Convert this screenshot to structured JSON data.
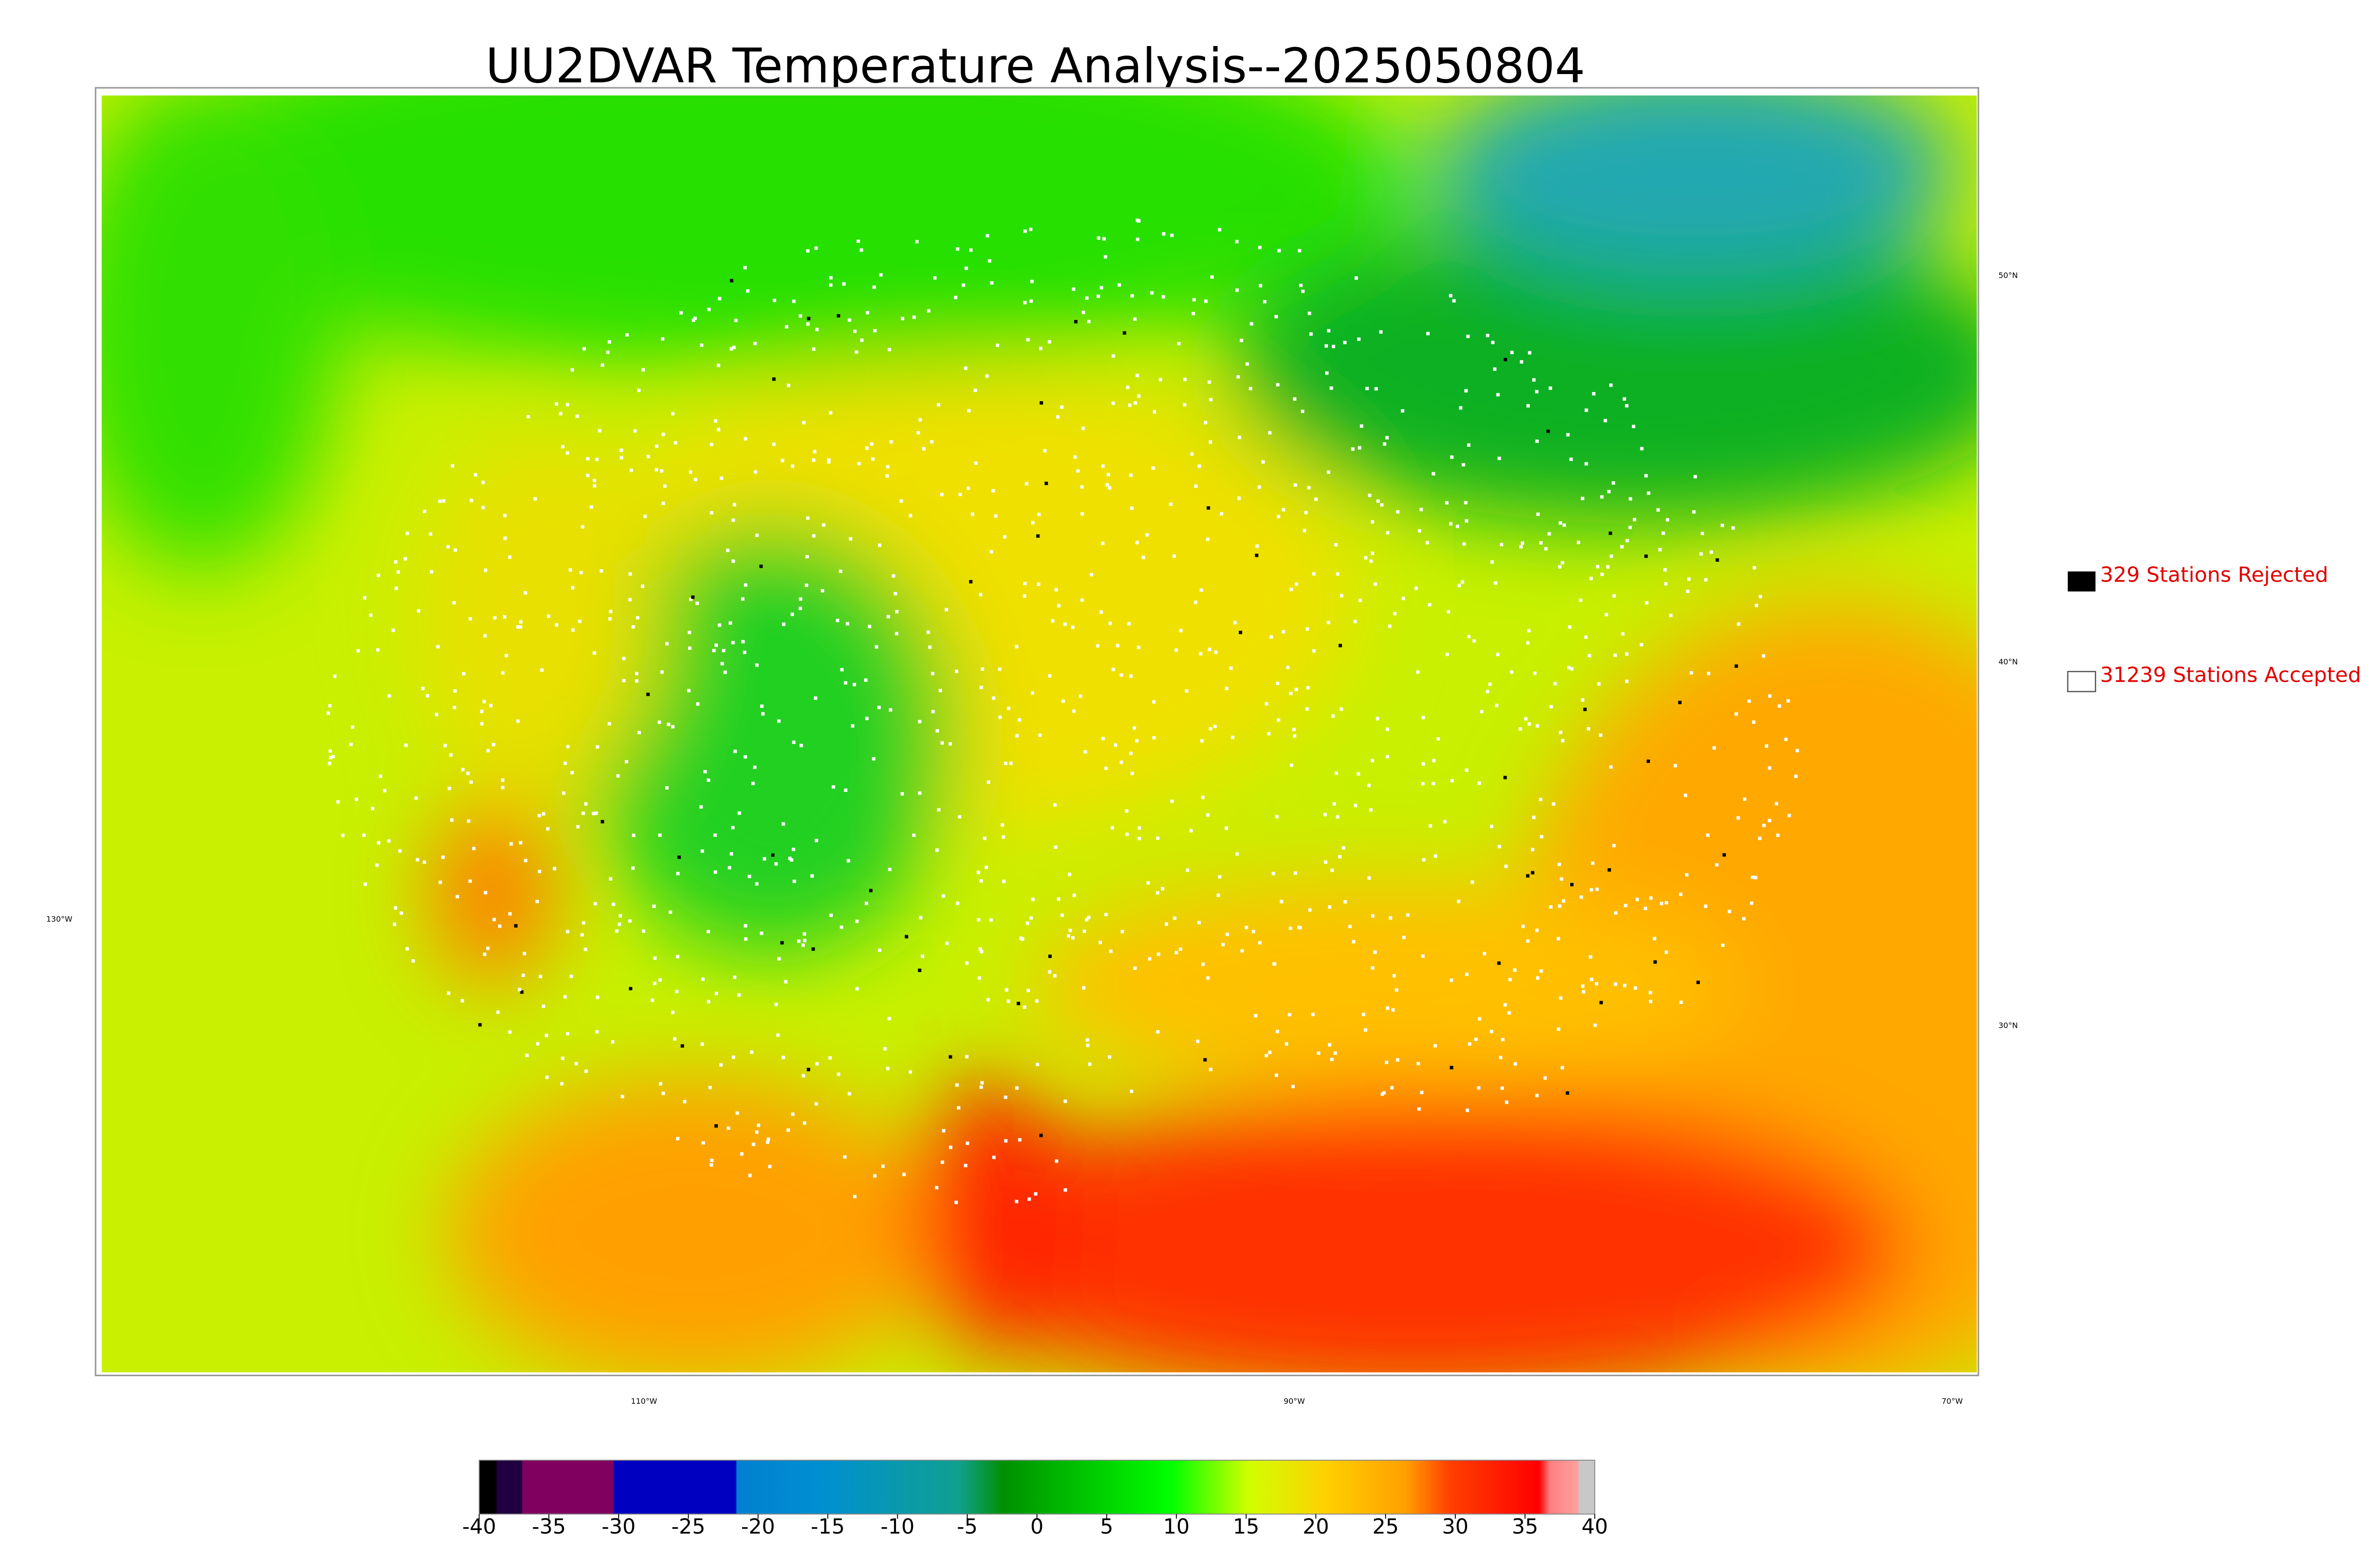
{
  "title": "UU2DVAR Temperature Analysis--2025050804",
  "legend": [
    {
      "label": "329 Stations Rejected"
    },
    {
      "label": "31239 Stations Accepted"
    }
  ],
  "latitude_labels": [
    "50°N",
    "40°N",
    "30°N"
  ],
  "longitude_labels": [
    "130°W",
    "110°W",
    "90°W",
    "70°W"
  ],
  "colorbar": {
    "range": [
      -40,
      40
    ],
    "ticks": [
      -40,
      -35,
      -30,
      -25,
      -20,
      -15,
      -10,
      -5,
      0,
      5,
      10,
      15,
      20,
      25,
      30,
      35,
      40
    ]
  }
}
